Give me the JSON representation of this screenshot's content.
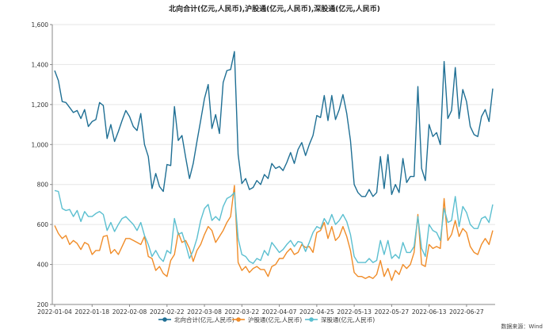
{
  "chart_data": {
    "type": "line",
    "title": "北向合计(亿元,人民币),沪股通(亿元,人民币),深股通(亿元,人民币)",
    "xlabel": "",
    "ylabel": "",
    "ylim": [
      200,
      1600
    ],
    "yticks": [
      "200",
      "400",
      "600",
      "800",
      "1,000",
      "1,200",
      "1,400",
      "1,600"
    ],
    "xtick_labels": [
      "2022-01-04",
      "2022-01-18",
      "2022-02-08",
      "2022-02-22",
      "2022-03-08",
      "2022-03-22",
      "2022-04-07",
      "2022-04-25",
      "2022-05-13",
      "2022-05-27",
      "2022-06-13",
      "2022-06-27"
    ],
    "xtick_index": [
      0,
      10,
      20,
      30,
      40,
      50,
      60,
      70,
      80,
      90,
      100,
      110
    ],
    "grid": true,
    "legend_position": "bottom",
    "source": "数据来源：Wind",
    "series": [
      {
        "name": "北向合计(亿元,人民币)",
        "color": "#1f6f94",
        "values": [
          1370,
          1320,
          1215,
          1210,
          1185,
          1160,
          1170,
          1130,
          1175,
          1090,
          1115,
          1125,
          1210,
          1195,
          1030,
          1100,
          1015,
          1065,
          1120,
          1170,
          1140,
          1090,
          1070,
          1155,
          1000,
          940,
          780,
          855,
          790,
          765,
          900,
          895,
          1190,
          1020,
          1045,
          935,
          830,
          905,
          1015,
          1120,
          1230,
          1300,
          1080,
          1150,
          1055,
          1310,
          1370,
          1375,
          1465,
          950,
          805,
          830,
          775,
          785,
          820,
          800,
          850,
          830,
          905,
          880,
          890,
          870,
          910,
          960,
          905,
          975,
          1010,
          945,
          1000,
          1045,
          1145,
          1135,
          1245,
          1120,
          1245,
          1125,
          1175,
          1250,
          1155,
          1020,
          800,
          760,
          740,
          740,
          775,
          740,
          760,
          940,
          780,
          950,
          750,
          800,
          760,
          930,
          810,
          840,
          840,
          1290,
          880,
          820,
          1100,
          1040,
          1060,
          1000,
          1415,
          1130,
          1170,
          1385,
          1130,
          1275,
          1215,
          1090,
          1050,
          1040,
          1140,
          1175,
          1115,
          1280
        ]
      },
      {
        "name": "沪股通(亿元,人民币)",
        "color": "#f08c28",
        "values": [
          595,
          555,
          530,
          545,
          500,
          520,
          505,
          475,
          510,
          500,
          450,
          470,
          470,
          540,
          545,
          455,
          475,
          450,
          490,
          530,
          530,
          520,
          510,
          500,
          540,
          440,
          430,
          370,
          390,
          355,
          340,
          420,
          450,
          560,
          510,
          520,
          480,
          415,
          470,
          500,
          550,
          590,
          570,
          510,
          540,
          570,
          610,
          640,
          795,
          410,
          370,
          390,
          360,
          380,
          390,
          375,
          375,
          340,
          390,
          400,
          430,
          430,
          460,
          480,
          450,
          460,
          500,
          485,
          490,
          460,
          560,
          570,
          610,
          530,
          590,
          520,
          540,
          590,
          540,
          470,
          360,
          340,
          340,
          330,
          340,
          330,
          350,
          420,
          340,
          380,
          320,
          370,
          350,
          400,
          380,
          400,
          460,
          650,
          400,
          390,
          500,
          480,
          490,
          480,
          730,
          520,
          550,
          620,
          540,
          580,
          560,
          490,
          460,
          450,
          500,
          530,
          500,
          570
        ]
      },
      {
        "name": "深股通(亿元,人民币)",
        "color": "#5bbfd0",
        "values": [
          770,
          765,
          680,
          670,
          675,
          640,
          670,
          615,
          665,
          640,
          640,
          655,
          665,
          650,
          570,
          610,
          565,
          600,
          630,
          640,
          620,
          600,
          570,
          610,
          545,
          500,
          440,
          470,
          435,
          415,
          470,
          455,
          630,
          550,
          560,
          500,
          430,
          470,
          530,
          620,
          680,
          700,
          620,
          640,
          620,
          690,
          730,
          740,
          760,
          530,
          450,
          440,
          415,
          405,
          430,
          420,
          470,
          445,
          510,
          485,
          460,
          475,
          500,
          520,
          490,
          515,
          510,
          465,
          510,
          560,
          590,
          580,
          630,
          600,
          650,
          600,
          620,
          650,
          615,
          550,
          440,
          410,
          410,
          410,
          430,
          410,
          420,
          520,
          450,
          520,
          430,
          450,
          430,
          510,
          460,
          460,
          490,
          640,
          480,
          440,
          600,
          570,
          560,
          520,
          680,
          610,
          620,
          740,
          590,
          690,
          660,
          600,
          580,
          580,
          630,
          640,
          610,
          700
        ]
      }
    ]
  }
}
